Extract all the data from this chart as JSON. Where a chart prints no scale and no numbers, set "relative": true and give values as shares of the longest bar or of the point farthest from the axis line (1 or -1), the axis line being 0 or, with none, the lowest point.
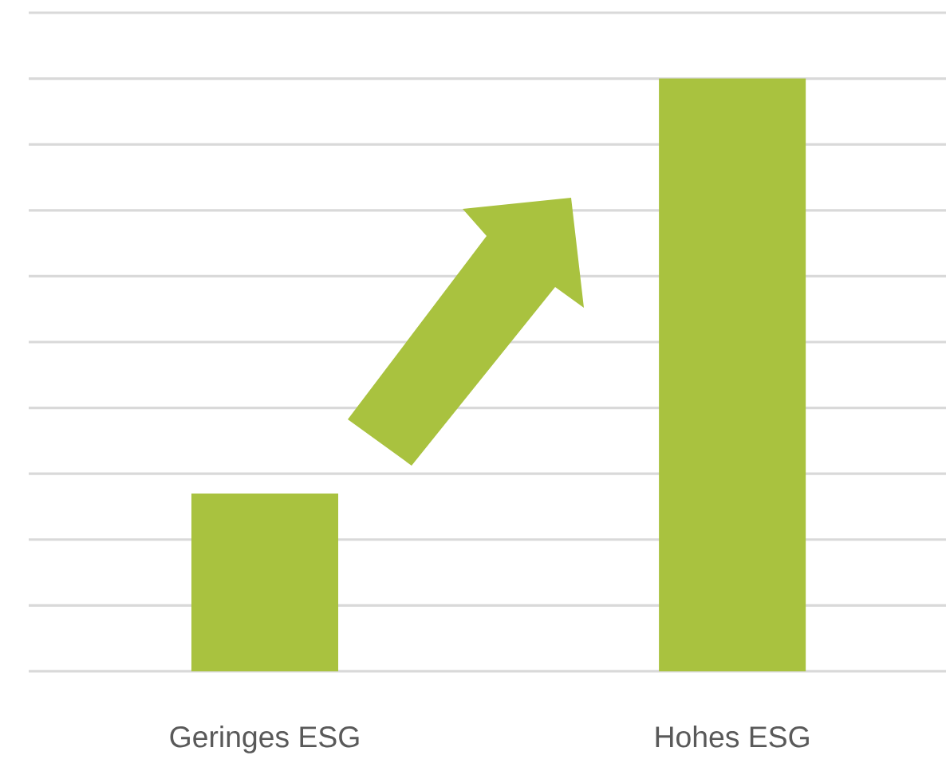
{
  "chart_data": {
    "type": "bar",
    "relative": true,
    "categories": [
      "Geringes ESG",
      "Hohes ESG"
    ],
    "values": [
      0.3,
      1
    ],
    "color": "#a9c23f",
    "grid": "y"
  }
}
